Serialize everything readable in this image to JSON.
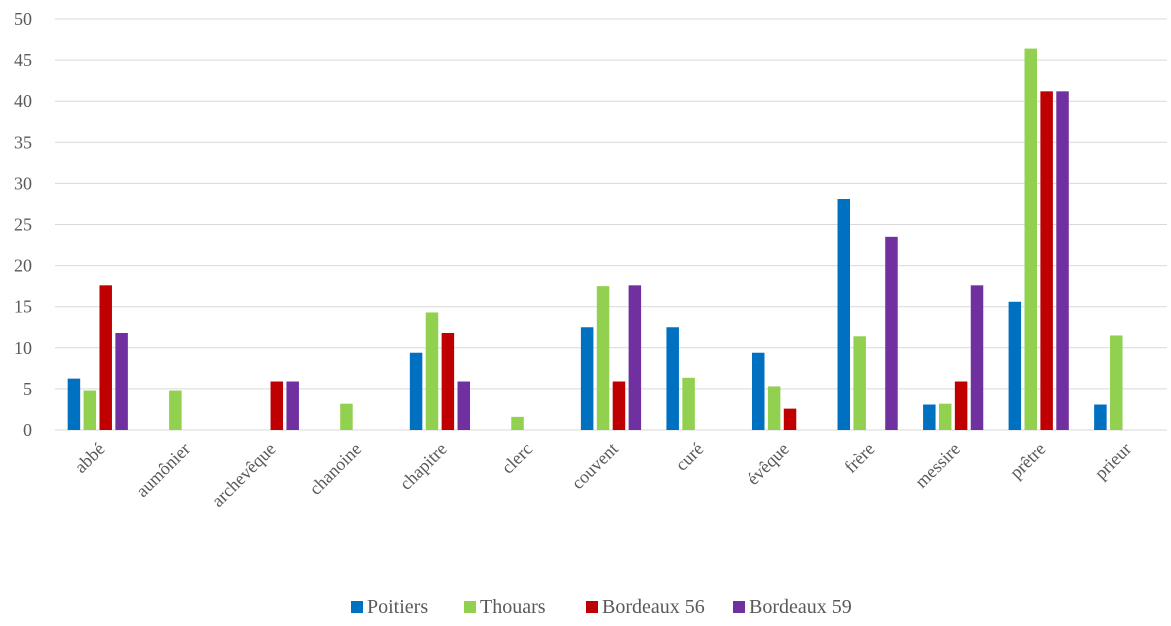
{
  "chart_data": {
    "type": "bar",
    "categories": [
      "abbé",
      "aumônier",
      "archevêque",
      "chanoine",
      "chapitre",
      "clerc",
      "couvent",
      "curé",
      "évêque",
      "frère",
      "messire",
      "prêtre",
      "prieur"
    ],
    "series": [
      {
        "name": "Poitiers",
        "color": "#0070c0",
        "values": [
          6.25,
          0,
          0,
          0,
          9.4,
          0,
          12.5,
          12.5,
          9.4,
          28.1,
          3.1,
          15.6,
          3.1
        ]
      },
      {
        "name": "Thouars",
        "color": "#92d050",
        "values": [
          4.8,
          4.8,
          0,
          3.2,
          14.3,
          1.6,
          17.5,
          6.35,
          5.3,
          11.4,
          3.2,
          46.4,
          11.5
        ]
      },
      {
        "name": "Bordeaux 56",
        "color": "#c00000",
        "values": [
          17.6,
          0,
          5.9,
          0,
          11.8,
          0,
          5.9,
          0,
          2.6,
          0,
          5.9,
          41.2,
          0
        ]
      },
      {
        "name": "Bordeaux 59",
        "color": "#7030a0",
        "values": [
          11.8,
          0,
          5.9,
          0,
          5.9,
          0,
          17.6,
          0,
          0,
          23.5,
          17.6,
          41.2,
          0
        ]
      }
    ],
    "title": "",
    "xlabel": "",
    "ylabel": "",
    "ylim": [
      0,
      50
    ],
    "yticks": [
      "0",
      "5",
      "10",
      "15",
      "20",
      "25",
      "30",
      "35",
      "40",
      "45",
      "50"
    ],
    "grid": true,
    "legend_position": "bottom",
    "gridline_color": "#d9d9d9"
  }
}
